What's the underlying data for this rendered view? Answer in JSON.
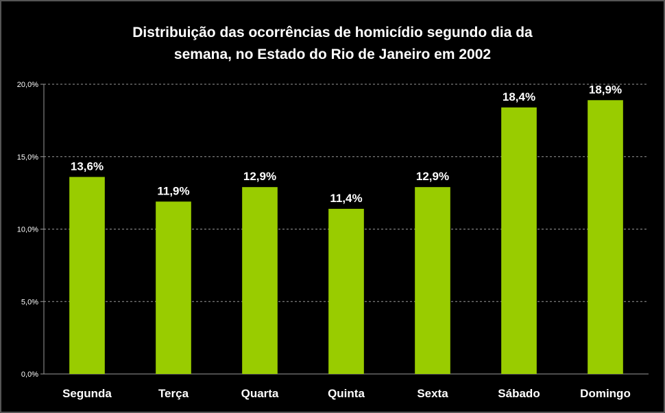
{
  "chart_data": {
    "type": "bar",
    "title_line1": "Distribuição das ocorrências de homicídio segundo dia da",
    "title_line2": "semana, no Estado do Rio de Janeiro em 2002",
    "xlabel": "",
    "ylabel": "",
    "categories": [
      "Segunda",
      "Terça",
      "Quarta",
      "Quinta",
      "Sexta",
      "Sábado",
      "Domingo"
    ],
    "values": [
      13.6,
      11.9,
      12.9,
      11.4,
      12.9,
      18.4,
      18.9
    ],
    "data_labels": [
      "13,6%",
      "11,9%",
      "12,9%",
      "11,4%",
      "12,9%",
      "18,4%",
      "18,9%"
    ],
    "y_ticks": [
      0,
      5,
      10,
      15,
      20
    ],
    "y_tick_labels": [
      "0,0%",
      "5,0%",
      "10,0%",
      "15,0%",
      "20,0%"
    ],
    "ylim": [
      0,
      20
    ],
    "grid": true,
    "legend": "none",
    "bar_color": "#99CC00",
    "background_color": "#000000"
  }
}
